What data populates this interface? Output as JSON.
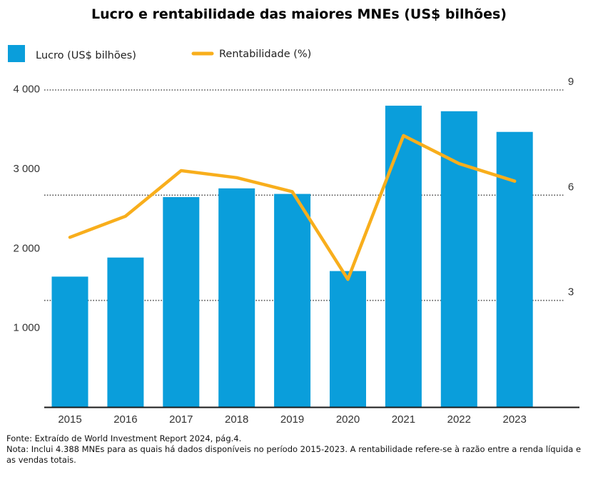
{
  "colors": {
    "bar": "#0a9edb",
    "line": "#f8ae1c",
    "grid": "#555555",
    "axis": "#1a1a1a"
  },
  "chart_data": {
    "type": "bar",
    "title": "Lucro e rentabilidade das maiores MNEs (US$ bilhões)",
    "categories": [
      "2015",
      "2016",
      "2017",
      "2018",
      "2019",
      "2020",
      "2021",
      "2022",
      "2023"
    ],
    "series": [
      {
        "name": "Lucro (US$ bilhões)",
        "type": "bar",
        "axis": "left",
        "values": [
          1640,
          1880,
          2640,
          2750,
          2680,
          1710,
          3790,
          3720,
          3460
        ]
      },
      {
        "name": "Rentabilidade (%)",
        "type": "line",
        "axis": "right",
        "values": [
          4.8,
          5.4,
          6.7,
          6.5,
          6.1,
          3.6,
          7.7,
          6.9,
          6.4
        ]
      }
    ],
    "y_left": {
      "ticks": [
        1000,
        2000,
        3000,
        4000
      ],
      "tick_labels": [
        "1 000",
        "2 000",
        "3 000",
        "4 000"
      ],
      "range": [
        0,
        4000
      ]
    },
    "y_right": {
      "ticks": [
        3,
        6,
        9
      ],
      "tick_labels": [
        "3",
        "6",
        "9"
      ],
      "range": [
        0,
        9
      ]
    },
    "grid": "dotted lines at right-axis ticks",
    "legend_position": "top-left"
  },
  "notes": {
    "source": "Fonte: Extraído de World Investment Report 2024, pág.4.",
    "note": "Nota: Inclui 4.388 MNEs para as quais há dados disponíveis  no período 2015-2023.  A rentabilidade refere-se à razão entre a renda líquida e as vendas  totais."
  }
}
